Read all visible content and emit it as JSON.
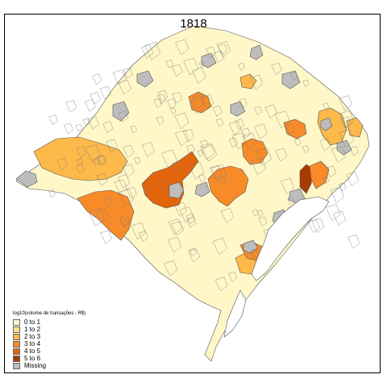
{
  "map": {
    "title": "1818",
    "legend": {
      "title": "log10(volume de transações - R$)",
      "items": [
        {
          "label": "0 to 1",
          "color": "#FFF7C8"
        },
        {
          "label": "1 to 2",
          "color": "#FDE28A"
        },
        {
          "label": "2 to 3",
          "color": "#FDB94A"
        },
        {
          "label": "3 to 4",
          "color": "#F88B28"
        },
        {
          "label": "4 to 5",
          "color": "#E2650C"
        },
        {
          "label": "5 to 6",
          "color": "#A83A04"
        },
        {
          "label": "Missing",
          "color": "#BDBDBD"
        }
      ]
    },
    "regions": [
      {
        "category": "0 to 1"
      },
      {
        "category": "2 to 3"
      },
      {
        "category": "3 to 4"
      },
      {
        "category": "4 to 5"
      },
      {
        "category": "3 to 4"
      },
      {
        "category": "3 to 4"
      },
      {
        "category": "2 to 3"
      },
      {
        "category": "3 to 4"
      },
      {
        "category": "5 to 6"
      },
      {
        "category": "3 to 4"
      },
      {
        "category": "2 to 3"
      },
      {
        "category": "3 to 4"
      },
      {
        "category": "2 to 3"
      },
      {
        "category": "3 to 4"
      },
      {
        "category": "2 to 3"
      },
      {
        "category": "Missing"
      },
      {
        "category": "Missing"
      },
      {
        "category": "Missing"
      },
      {
        "category": "Missing"
      },
      {
        "category": "Missing"
      },
      {
        "category": "Missing"
      },
      {
        "category": "Missing"
      },
      {
        "category": "Missing"
      },
      {
        "category": "Missing"
      },
      {
        "category": "Missing"
      },
      {
        "category": "Missing"
      },
      {
        "category": "Missing"
      },
      {
        "category": "Missing"
      },
      {
        "category": "Missing"
      }
    ]
  }
}
